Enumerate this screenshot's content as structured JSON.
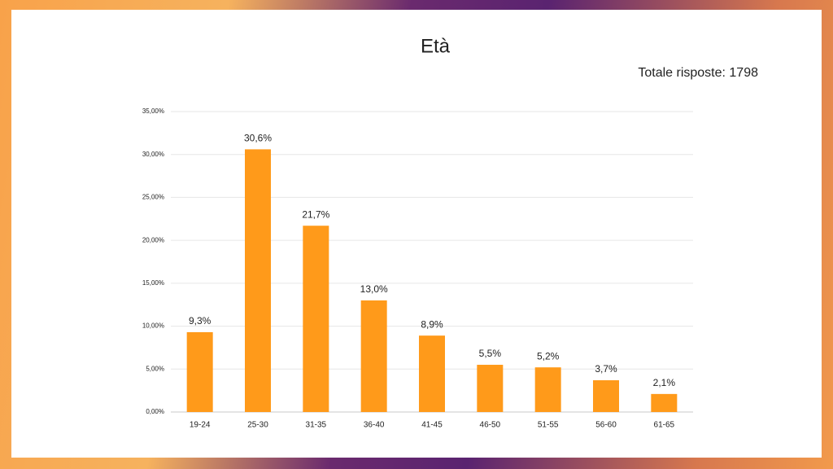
{
  "chart_data": {
    "type": "bar",
    "title": "Età",
    "subtitle": "Totale risposte: 1798",
    "categories": [
      "19-24",
      "25-30",
      "31-35",
      "36-40",
      "41-45",
      "46-50",
      "51-55",
      "56-60",
      "61-65"
    ],
    "values": [
      9.3,
      30.6,
      21.7,
      13.0,
      8.9,
      5.5,
      5.2,
      3.7,
      2.1
    ],
    "value_labels": [
      "9,3%",
      "30,6%",
      "21,7%",
      "13,0%",
      "8,9%",
      "5,5%",
      "5,2%",
      "3,7%",
      "2,1%"
    ],
    "color": "#ff9a1a",
    "ylim": [
      0,
      35
    ],
    "yticks": [
      {
        "value": 0,
        "label": "0,00%"
      },
      {
        "value": 5,
        "label": "5,00%"
      },
      {
        "value": 10,
        "label": "10,00%"
      },
      {
        "value": 15,
        "label": "15,00%"
      },
      {
        "value": 20,
        "label": "20,00%"
      },
      {
        "value": 25,
        "label": "25,00%"
      },
      {
        "value": 30,
        "label": "30,00%"
      },
      {
        "value": 35,
        "label": "35,00%"
      }
    ],
    "grid": true
  }
}
